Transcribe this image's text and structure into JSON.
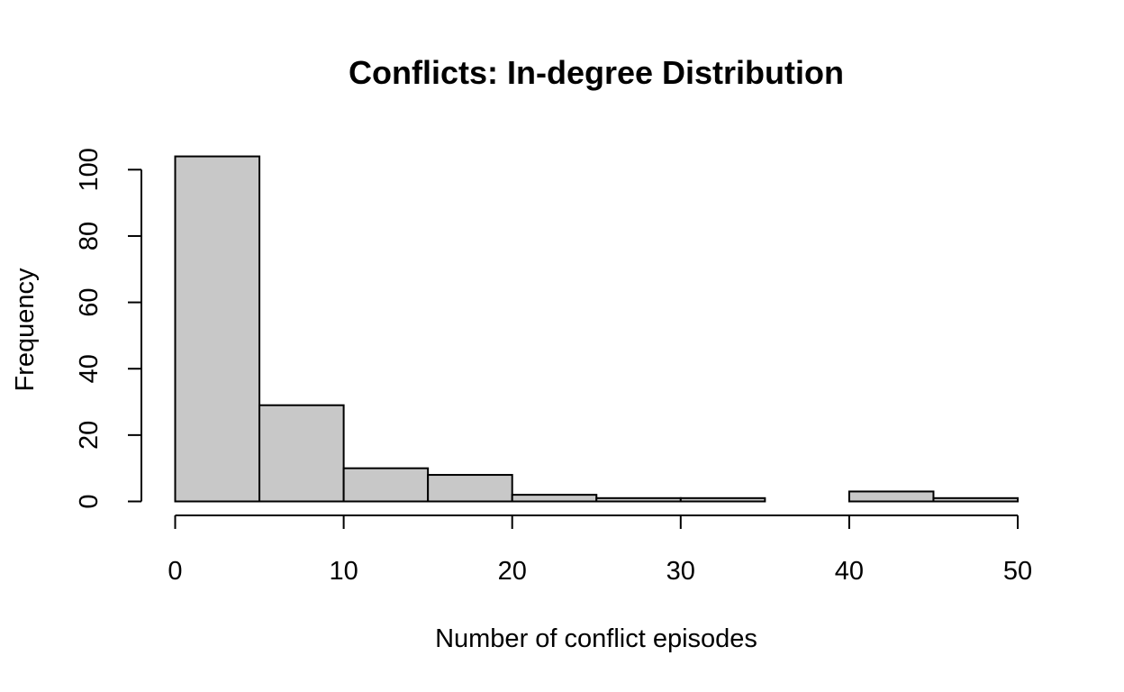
{
  "chart_data": {
    "type": "bar",
    "title": "Conflicts: In-degree Distribution",
    "xlabel": "Number of conflict episodes",
    "ylabel": "Frequency",
    "bin_edges": [
      0,
      5,
      10,
      15,
      20,
      25,
      30,
      35,
      40,
      45,
      50
    ],
    "values": [
      104,
      29,
      10,
      8,
      2,
      1,
      1,
      0,
      3,
      1
    ],
    "xlim": [
      0,
      50
    ],
    "ylim": [
      0,
      104
    ],
    "x_ticks": [
      0,
      10,
      20,
      30,
      40,
      50
    ],
    "y_ticks": [
      0,
      20,
      40,
      60,
      80,
      100
    ],
    "bar_color": "#c8c8c8",
    "grid": false,
    "legend": "none"
  }
}
